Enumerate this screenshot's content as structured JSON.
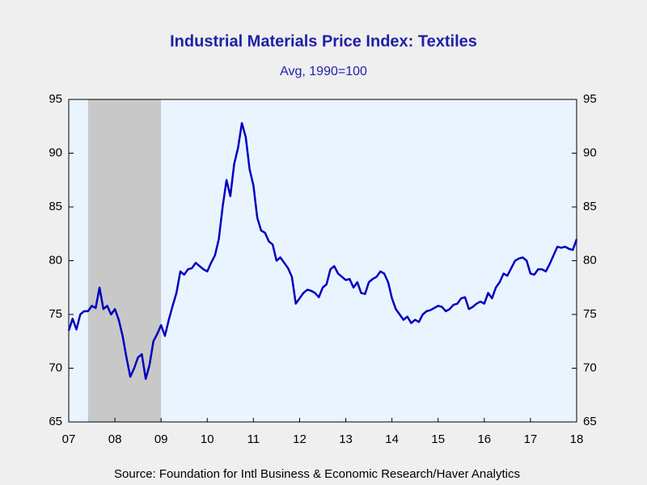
{
  "chart_data": {
    "type": "line",
    "title": "Industrial Materials Price Index: Textiles",
    "subtitle": "Avg, 1990=100",
    "source": "Source:  Foundation for Intl Business & Economic Research/Haver Analytics",
    "xlim": [
      2007.5,
      2018.5
    ],
    "xticks": [
      {
        "value": 2007.5,
        "label": "07"
      },
      {
        "value": 2008.5,
        "label": "08"
      },
      {
        "value": 2009.5,
        "label": "09"
      },
      {
        "value": 2010.5,
        "label": "10"
      },
      {
        "value": 2011.5,
        "label": "11"
      },
      {
        "value": 2012.5,
        "label": "12"
      },
      {
        "value": 2013.5,
        "label": "13"
      },
      {
        "value": 2014.5,
        "label": "14"
      },
      {
        "value": 2015.5,
        "label": "15"
      },
      {
        "value": 2016.5,
        "label": "16"
      },
      {
        "value": 2017.5,
        "label": "17"
      },
      {
        "value": 2018.5,
        "label": "18"
      }
    ],
    "ylim": [
      65,
      95
    ],
    "yticks": [
      65,
      70,
      75,
      80,
      85,
      90,
      95
    ],
    "shaded_regions": [
      [
        2007.917,
        2009.5
      ]
    ],
    "shade_color": "#c8c8c8",
    "x": [
      2007.5,
      2007.583,
      2007.667,
      2007.75,
      2007.833,
      2007.917,
      2008.0,
      2008.083,
      2008.167,
      2008.25,
      2008.333,
      2008.417,
      2008.5,
      2008.583,
      2008.667,
      2008.75,
      2008.833,
      2008.917,
      2009.0,
      2009.083,
      2009.167,
      2009.25,
      2009.333,
      2009.417,
      2009.5,
      2009.583,
      2009.667,
      2009.75,
      2009.833,
      2009.917,
      2010.0,
      2010.083,
      2010.167,
      2010.25,
      2010.333,
      2010.417,
      2010.5,
      2010.583,
      2010.667,
      2010.75,
      2010.833,
      2010.917,
      2011.0,
      2011.083,
      2011.167,
      2011.25,
      2011.333,
      2011.417,
      2011.5,
      2011.583,
      2011.667,
      2011.75,
      2011.833,
      2011.917,
      2012.0,
      2012.083,
      2012.167,
      2012.25,
      2012.333,
      2012.417,
      2012.5,
      2012.583,
      2012.667,
      2012.75,
      2012.833,
      2012.917,
      2013.0,
      2013.083,
      2013.167,
      2013.25,
      2013.333,
      2013.417,
      2013.5,
      2013.583,
      2013.667,
      2013.75,
      2013.833,
      2013.917,
      2014.0,
      2014.083,
      2014.167,
      2014.25,
      2014.333,
      2014.417,
      2014.5,
      2014.583,
      2014.667,
      2014.75,
      2014.833,
      2014.917,
      2015.0,
      2015.083,
      2015.167,
      2015.25,
      2015.333,
      2015.417,
      2015.5,
      2015.583,
      2015.667,
      2015.75,
      2015.833,
      2015.917,
      2016.0,
      2016.083,
      2016.167,
      2016.25,
      2016.333,
      2016.417,
      2016.5,
      2016.583,
      2016.667,
      2016.75,
      2016.833,
      2016.917,
      2017.0,
      2017.083,
      2017.167,
      2017.25,
      2017.333,
      2017.417,
      2017.5,
      2017.583,
      2017.667,
      2017.75,
      2017.833,
      2017.917,
      2018.0,
      2018.083,
      2018.167,
      2018.25,
      2018.333,
      2018.417,
      2018.5
    ],
    "series": [
      {
        "name": "Textiles",
        "color": "#0000c0",
        "values": [
          73.5,
          74.6,
          73.6,
          75.0,
          75.3,
          75.3,
          75.8,
          75.6,
          77.5,
          75.5,
          75.8,
          75.0,
          75.5,
          74.5,
          73.0,
          71.0,
          69.2,
          70.0,
          71.0,
          71.3,
          69.0,
          70.3,
          72.5,
          73.2,
          74.0,
          73.0,
          74.5,
          75.8,
          77.0,
          79.0,
          78.7,
          79.2,
          79.3,
          79.8,
          79.5,
          79.2,
          79.0,
          79.8,
          80.5,
          82.0,
          85.0,
          87.5,
          86.0,
          89.0,
          90.5,
          92.8,
          91.5,
          88.5,
          87.0,
          84.0,
          82.8,
          82.6,
          81.8,
          81.5,
          80.0,
          80.3,
          79.8,
          79.3,
          78.5,
          76.0,
          76.5,
          77.0,
          77.3,
          77.2,
          77.0,
          76.6,
          77.5,
          77.8,
          79.2,
          79.5,
          78.8,
          78.5,
          78.2,
          78.3,
          77.5,
          78.0,
          77.0,
          76.9,
          78.0,
          78.3,
          78.5,
          79.0,
          78.8,
          78.0,
          76.5,
          75.5,
          75.0,
          74.5,
          74.8,
          74.2,
          74.5,
          74.3,
          75.0,
          75.3,
          75.4,
          75.6,
          75.8,
          75.7,
          75.3,
          75.5,
          75.9,
          76.0,
          76.5,
          76.6,
          75.5,
          75.7,
          76.0,
          76.2,
          76.0,
          77.0,
          76.5,
          77.5,
          78.0,
          78.8,
          78.6,
          79.3,
          80.0,
          80.2,
          80.3,
          80.0,
          78.8,
          78.7,
          79.2,
          79.2,
          79.0,
          79.7,
          80.5,
          81.3,
          81.2,
          81.3,
          81.1,
          81.0,
          82.0
        ]
      }
    ]
  }
}
